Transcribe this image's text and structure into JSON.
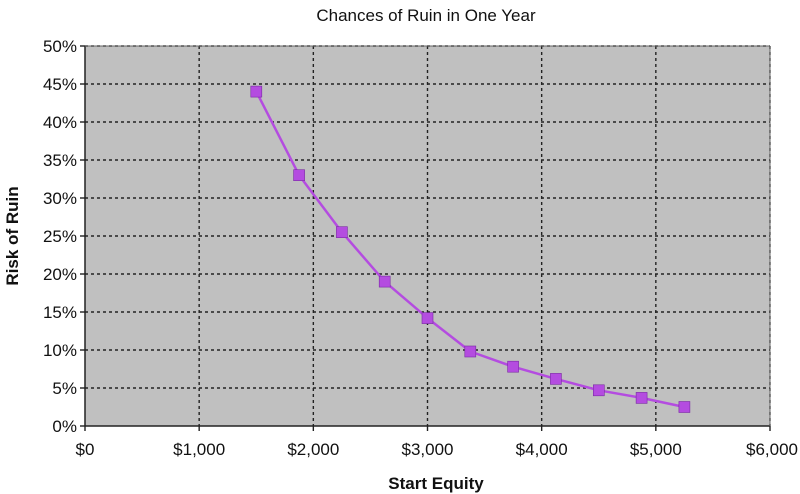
{
  "chart_data": {
    "type": "line",
    "title": "Chances of Ruin in One Year",
    "xlabel": "Start Equity",
    "ylabel": "Risk of Ruin",
    "xlim": [
      0,
      6000
    ],
    "ylim": [
      0,
      50
    ],
    "x_ticks": [
      0,
      1000,
      2000,
      3000,
      4000,
      5000,
      6000
    ],
    "x_tick_labels": [
      "$0",
      "$1,000",
      "$2,000",
      "$3,000",
      "$4,000",
      "$5,000",
      "$6,000"
    ],
    "y_ticks": [
      0,
      5,
      10,
      15,
      20,
      25,
      30,
      35,
      40,
      45,
      50
    ],
    "y_tick_labels": [
      "0%",
      "5%",
      "10%",
      "15%",
      "20%",
      "25%",
      "30%",
      "35%",
      "40%",
      "45%",
      "50%"
    ],
    "grid": true,
    "plot_background": "#c0c0c0",
    "series": [
      {
        "color": "#b44ce0",
        "marker": "square",
        "x": [
          1500,
          1875,
          2250,
          2625,
          3000,
          3375,
          3750,
          4125,
          4500,
          4875,
          5250
        ],
        "y": [
          44,
          33,
          25.5,
          19,
          14.2,
          9.8,
          7.8,
          6.2,
          4.7,
          3.7,
          2.5
        ]
      }
    ]
  }
}
